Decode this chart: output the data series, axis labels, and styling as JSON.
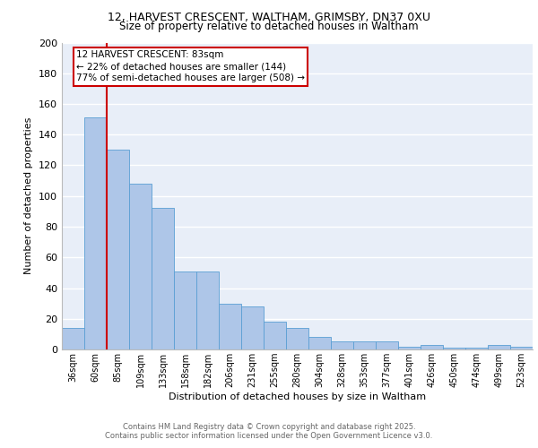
{
  "title_line1": "12, HARVEST CRESCENT, WALTHAM, GRIMSBY, DN37 0XU",
  "title_line2": "Size of property relative to detached houses in Waltham",
  "xlabel": "Distribution of detached houses by size in Waltham",
  "ylabel": "Number of detached properties",
  "bar_labels": [
    "36sqm",
    "60sqm",
    "85sqm",
    "109sqm",
    "133sqm",
    "158sqm",
    "182sqm",
    "206sqm",
    "231sqm",
    "255sqm",
    "280sqm",
    "304sqm",
    "328sqm",
    "353sqm",
    "377sqm",
    "401sqm",
    "426sqm",
    "450sqm",
    "474sqm",
    "499sqm",
    "523sqm"
  ],
  "bar_heights": [
    14,
    151,
    130,
    108,
    92,
    51,
    51,
    30,
    28,
    18,
    14,
    8,
    5,
    5,
    5,
    2,
    3,
    1,
    1,
    3,
    2
  ],
  "bar_color": "#aec6e8",
  "bar_edge_color": "#5a9fd4",
  "background_color": "#e8eef8",
  "grid_color": "#ffffff",
  "vline_x": 1.5,
  "vline_color": "#cc0000",
  "annotation_text": "12 HARVEST CRESCENT: 83sqm\n← 22% of detached houses are smaller (144)\n77% of semi-detached houses are larger (508) →",
  "annotation_box_color": "#cc0000",
  "ylim": [
    0,
    200
  ],
  "yticks": [
    0,
    20,
    40,
    60,
    80,
    100,
    120,
    140,
    160,
    180,
    200
  ],
  "footer_line1": "Contains HM Land Registry data © Crown copyright and database right 2025.",
  "footer_line2": "Contains public sector information licensed under the Open Government Licence v3.0."
}
